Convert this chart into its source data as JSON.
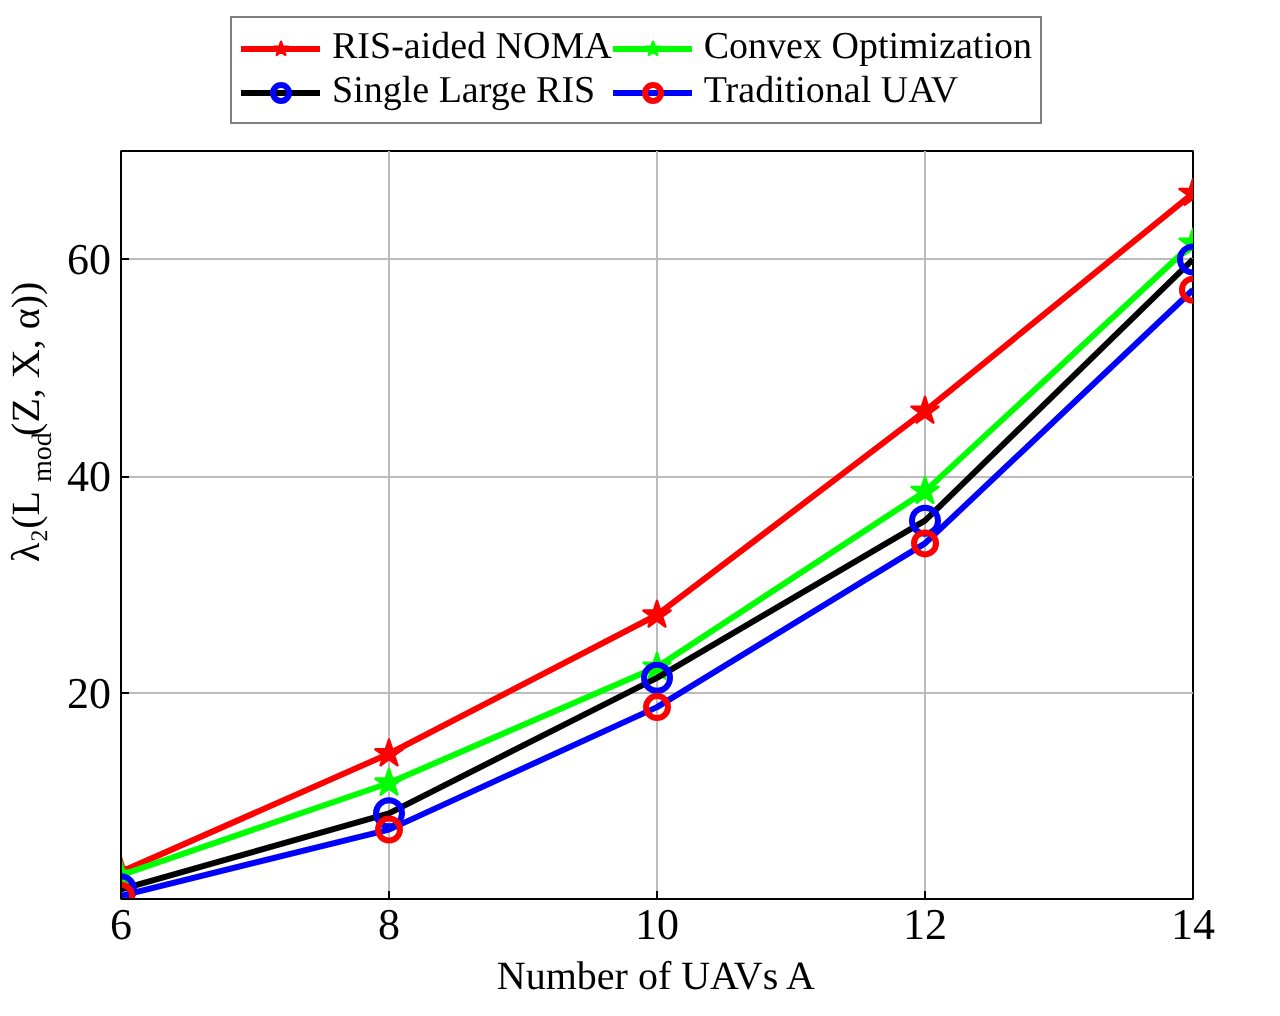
{
  "chart_data": {
    "type": "line",
    "xlabel": "Number of UAVs A",
    "ylabel": "λ₂(L$_{mod}$(Z, X, α))",
    "x": [
      6,
      8,
      10,
      12,
      14
    ],
    "xlim": [
      6,
      14
    ],
    "xticks": [
      6,
      8,
      10,
      12,
      14
    ],
    "ylim": [
      1,
      70
    ],
    "yticks": [
      20,
      40,
      60
    ],
    "grid": true,
    "legend": "top",
    "line_style": "solid",
    "series": [
      {
        "name": "RIS-aided NOMA",
        "color": "#ff0000",
        "marker": "star",
        "colors": [
          "#ff0000",
          "#ff0000",
          "#ff0000",
          "#ff0000",
          "#ff0000"
        ],
        "values": [
          3.5,
          14.4,
          27.2,
          46,
          66.1
        ]
      },
      {
        "name": "Convex Optimization",
        "color": "#00ff00",
        "marker": "star",
        "colors": [
          "#00ff00",
          "#00ff00",
          "#00ff00",
          "#00ff00",
          "#00ff00"
        ],
        "values": [
          3.2,
          11.7,
          22.4,
          38.6,
          61.5
        ]
      },
      {
        "name": "Single Large RIS",
        "color": "#000000",
        "marker": "circle",
        "colors": [
          "#0000ff",
          "#0000ff",
          "#0000ff",
          "#0000ff",
          "#0000ff"
        ],
        "values": [
          1.9,
          8.9,
          21.4,
          35.9,
          60
        ]
      },
      {
        "name": "Traditional UAV",
        "color": "#0000ff",
        "marker": "circle",
        "colors": [
          "#ff0000",
          "#ff0000",
          "#ff0000",
          "#ff0000",
          "#ff0000"
        ],
        "values": [
          1.3,
          7.4,
          18.7,
          33.8,
          57.2
        ]
      }
    ]
  }
}
